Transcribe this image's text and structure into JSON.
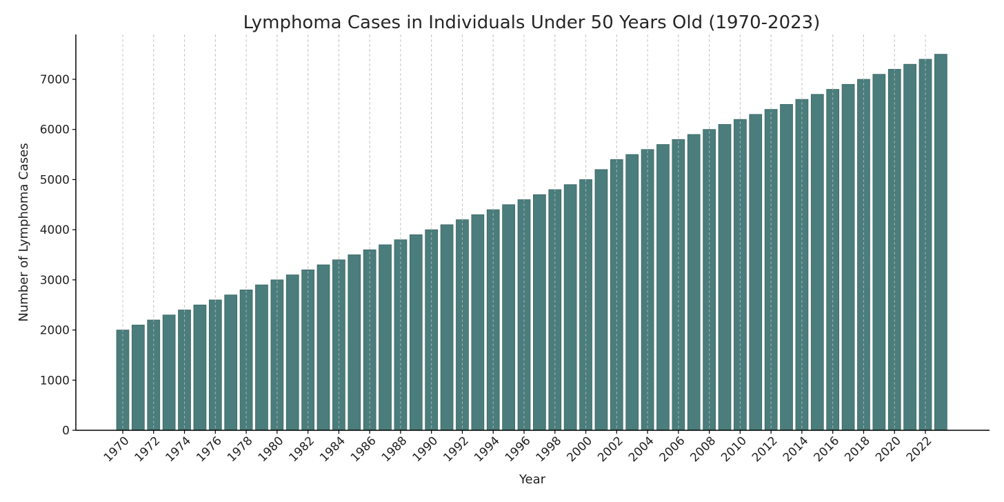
{
  "chart_data": {
    "type": "bar",
    "title": "Lymphoma Cases in Individuals Under 50 Years Old (1970-2023)",
    "xlabel": "Year",
    "ylabel": "Number of Lymphoma Cases",
    "ylim": [
      0,
      7800
    ],
    "yticks": [
      0,
      1000,
      2000,
      3000,
      4000,
      5000,
      6000,
      7000
    ],
    "xtick_labels": [
      "1970",
      "1972",
      "1974",
      "1976",
      "1978",
      "1980",
      "1982",
      "1984",
      "1986",
      "1988",
      "1990",
      "1992",
      "1994",
      "1996",
      "1998",
      "2000",
      "2002",
      "2004",
      "2006",
      "2008",
      "2010",
      "2012",
      "2014",
      "2016",
      "2018",
      "2020",
      "2022"
    ],
    "grid": "vertical dashed",
    "bar_color": "#4a7d7b",
    "categories": [
      "1970",
      "1971",
      "1972",
      "1973",
      "1974",
      "1975",
      "1976",
      "1977",
      "1978",
      "1979",
      "1980",
      "1981",
      "1982",
      "1983",
      "1984",
      "1985",
      "1986",
      "1987",
      "1988",
      "1989",
      "1990",
      "1991",
      "1992",
      "1993",
      "1994",
      "1995",
      "1996",
      "1997",
      "1998",
      "1999",
      "2000",
      "2001",
      "2002",
      "2003",
      "2004",
      "2005",
      "2006",
      "2007",
      "2008",
      "2009",
      "2010",
      "2011",
      "2012",
      "2013",
      "2014",
      "2015",
      "2016",
      "2017",
      "2018",
      "2019",
      "2020",
      "2021",
      "2022",
      "2023"
    ],
    "values": [
      2000,
      2100,
      2200,
      2300,
      2400,
      2500,
      2600,
      2700,
      2800,
      2900,
      3000,
      3100,
      3200,
      3300,
      3400,
      3500,
      3600,
      3700,
      3800,
      3900,
      4000,
      4100,
      4200,
      4300,
      4400,
      4500,
      4600,
      4700,
      4800,
      4900,
      5000,
      5200,
      5400,
      5500,
      5600,
      5700,
      5800,
      5900,
      6000,
      6100,
      6200,
      6300,
      6400,
      6500,
      6600,
      6700,
      6800,
      6900,
      7000,
      7100,
      7200,
      7300,
      7400,
      7500
    ]
  }
}
